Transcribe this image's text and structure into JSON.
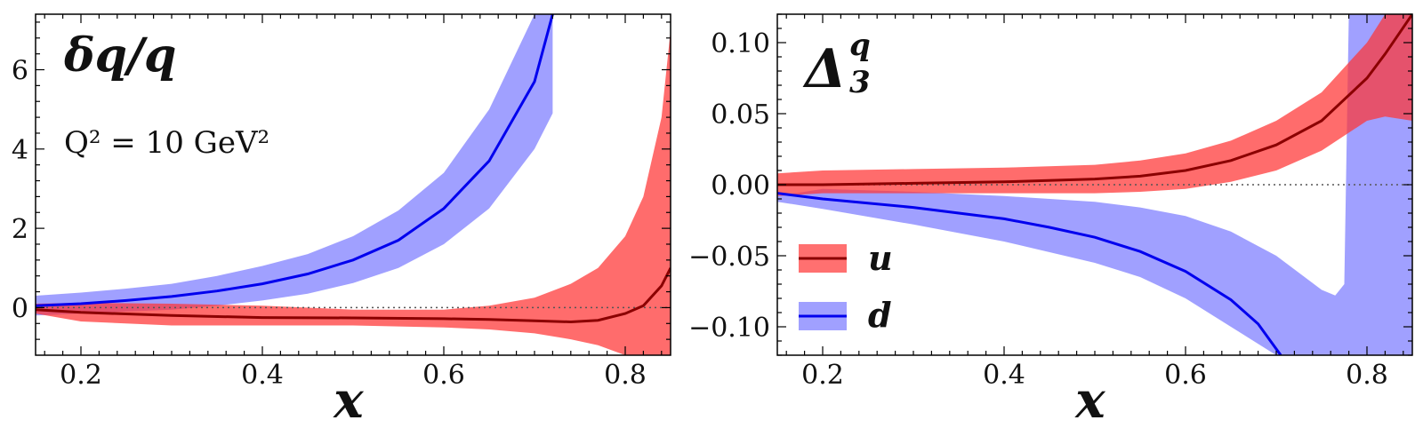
{
  "chart_data": [
    {
      "type": "line",
      "title": "δq/q",
      "annotation": "Q² = 10 GeV²",
      "xlabel": "x",
      "ylabel": "",
      "xlim": [
        0.15,
        0.85
      ],
      "ylim": [
        -1.2,
        7.4
      ],
      "xticks": [
        0.2,
        0.4,
        0.6,
        0.8
      ],
      "xtick_labels": [
        "0.2",
        "0.4",
        "0.6",
        "0.8"
      ],
      "yticks": [
        0,
        2,
        4,
        6
      ],
      "ytick_labels": [
        "0",
        "2",
        "4",
        "6"
      ],
      "reference_line": 0,
      "series": [
        {
          "name": "d",
          "line_color": "#0000ee",
          "band_color": "#8888ff",
          "x": [
            0.15,
            0.2,
            0.25,
            0.3,
            0.35,
            0.4,
            0.45,
            0.5,
            0.55,
            0.6,
            0.65,
            0.7,
            0.72
          ],
          "center": [
            0.05,
            0.1,
            0.18,
            0.28,
            0.42,
            0.6,
            0.85,
            1.2,
            1.7,
            2.5,
            3.7,
            5.7,
            7.4
          ],
          "lower": [
            -0.2,
            -0.15,
            -0.1,
            -0.05,
            0.05,
            0.18,
            0.35,
            0.62,
            1.0,
            1.6,
            2.5,
            4.0,
            4.9
          ],
          "upper": [
            0.3,
            0.38,
            0.48,
            0.6,
            0.8,
            1.05,
            1.35,
            1.8,
            2.45,
            3.4,
            5.0,
            7.4,
            7.4
          ]
        },
        {
          "name": "u",
          "line_color": "#8b0000",
          "band_color": "#ff3333",
          "x": [
            0.15,
            0.2,
            0.3,
            0.4,
            0.5,
            0.6,
            0.65,
            0.7,
            0.74,
            0.77,
            0.8,
            0.82,
            0.84,
            0.85
          ],
          "center": [
            -0.05,
            -0.12,
            -0.2,
            -0.25,
            -0.26,
            -0.28,
            -0.3,
            -0.33,
            -0.36,
            -0.32,
            -0.15,
            0.05,
            0.55,
            1.0
          ],
          "lower": [
            -0.15,
            -0.35,
            -0.45,
            -0.45,
            -0.45,
            -0.5,
            -0.55,
            -0.65,
            -0.8,
            -0.95,
            -1.2,
            -1.2,
            -1.2,
            -1.2
          ],
          "upper": [
            0.1,
            0.12,
            0.1,
            0.05,
            -0.05,
            -0.05,
            0.05,
            0.25,
            0.6,
            1.0,
            1.8,
            2.8,
            4.8,
            7.0
          ]
        }
      ]
    },
    {
      "type": "line",
      "title": "Δ",
      "title_sup": "q",
      "title_sub": "3",
      "xlabel": "x",
      "ylabel": "",
      "xlim": [
        0.15,
        0.85
      ],
      "ylim": [
        -0.12,
        0.12
      ],
      "xticks": [
        0.2,
        0.4,
        0.6,
        0.8
      ],
      "xtick_labels": [
        "0.2",
        "0.4",
        "0.6",
        "0.8"
      ],
      "yticks": [
        0.1,
        0.05,
        0.0,
        -0.05,
        -0.1
      ],
      "ytick_labels": [
        "0.10",
        "0.05",
        "0.00",
        "−0.05",
        "−0.10"
      ],
      "reference_line": 0,
      "legend_position": "center-left",
      "legend": [
        {
          "label": "u",
          "line_color": "#8b0000",
          "band_color": "#ff3333"
        },
        {
          "label": "d",
          "line_color": "#0000ee",
          "band_color": "#8888ff"
        }
      ],
      "series": [
        {
          "name": "d",
          "line_color": "#0000ee",
          "band_color": "#8888ff",
          "band_x": [
            0.15,
            0.2,
            0.3,
            0.4,
            0.5,
            0.55,
            0.6,
            0.65,
            0.7,
            0.75,
            0.765,
            0.775,
            0.78,
            0.8,
            0.83,
            0.85
          ],
          "band_lower": [
            -0.012,
            -0.017,
            -0.028,
            -0.04,
            -0.055,
            -0.065,
            -0.08,
            -0.1,
            -0.12,
            -0.12,
            -0.12,
            -0.12,
            -0.12,
            -0.12,
            -0.12,
            -0.12
          ],
          "band_upper": [
            -0.008,
            -0.003,
            -0.005,
            -0.008,
            -0.012,
            -0.016,
            -0.022,
            -0.033,
            -0.05,
            -0.074,
            -0.078,
            -0.07,
            0.12,
            0.12,
            0.12,
            0.12
          ],
          "x": [
            0.15,
            0.2,
            0.3,
            0.4,
            0.45,
            0.5,
            0.55,
            0.6,
            0.65,
            0.68,
            0.705
          ],
          "center": [
            -0.006,
            -0.01,
            -0.016,
            -0.024,
            -0.03,
            -0.037,
            -0.047,
            -0.061,
            -0.081,
            -0.098,
            -0.12
          ]
        },
        {
          "name": "u",
          "line_color": "#8b0000",
          "band_color": "#ff3333",
          "x": [
            0.15,
            0.2,
            0.3,
            0.4,
            0.5,
            0.55,
            0.6,
            0.65,
            0.7,
            0.75,
            0.8,
            0.82,
            0.85
          ],
          "center": [
            0.0,
            0.0,
            0.001,
            0.002,
            0.004,
            0.006,
            0.01,
            0.017,
            0.028,
            0.045,
            0.075,
            0.092,
            0.12
          ],
          "lower": [
            -0.008,
            -0.006,
            -0.006,
            -0.006,
            -0.006,
            -0.005,
            -0.003,
            0.002,
            0.01,
            0.024,
            0.045,
            0.048,
            0.045
          ],
          "upper": [
            0.008,
            0.01,
            0.011,
            0.012,
            0.014,
            0.017,
            0.022,
            0.031,
            0.045,
            0.065,
            0.1,
            0.12,
            0.12
          ]
        }
      ]
    }
  ]
}
